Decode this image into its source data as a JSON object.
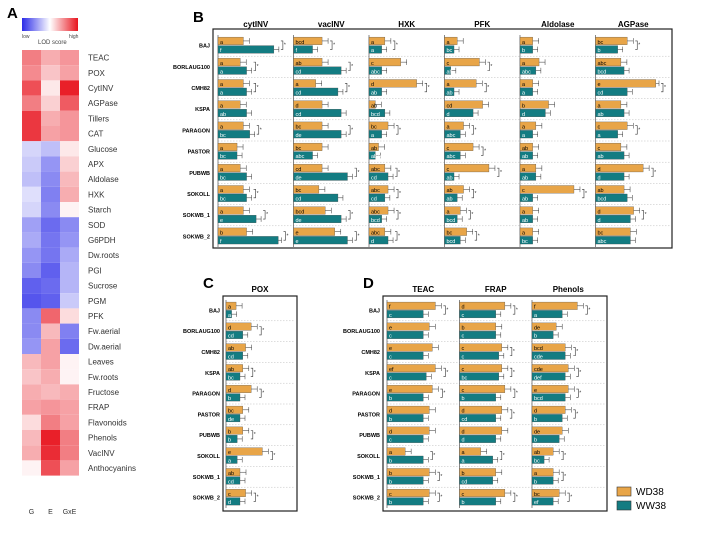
{
  "panel_letters": {
    "A": "A",
    "B": "B",
    "C": "C",
    "D": "D"
  },
  "legend_scale": {
    "low": "low",
    "high": "high",
    "title": "LOD score"
  },
  "legend": {
    "wd": "WD38",
    "ww": "WW38"
  },
  "colors": {
    "wd": "#E8A548",
    "ww": "#137C82",
    "panel_border": "#222222"
  },
  "chart_data": [
    {
      "type": "heatmap",
      "x_labels": [
        "G",
        "E",
        "GxE"
      ],
      "y_labels": [
        "TEAC",
        "POX",
        "CytINV",
        "AGPase",
        "Tillers",
        "CAT",
        "Glucose",
        "APX",
        "Aldolase",
        "HXK",
        "Starch",
        "SOD",
        "G6PDH",
        "Dw.roots",
        "PGI",
        "Sucrose",
        "PGM",
        "PFK",
        "Fw.aerial",
        "Dw.aerial",
        "Leaves",
        "Fw.roots",
        "Fructose",
        "FRAP",
        "Flavonoids",
        "Phenols",
        "VacINV",
        "Anthocyanins"
      ],
      "values": [
        [
          0.55,
          0.35,
          0.45
        ],
        [
          0.5,
          0.25,
          0.4
        ],
        [
          0.75,
          0.1,
          0.95
        ],
        [
          0.55,
          0.2,
          0.7
        ],
        [
          0.85,
          0.35,
          0.45
        ],
        [
          0.85,
          0.4,
          0.45
        ],
        [
          -0.2,
          -0.3,
          0.1
        ],
        [
          -0.25,
          -0.5,
          0.2
        ],
        [
          -0.3,
          -0.55,
          0.3
        ],
        [
          -0.15,
          -0.6,
          0.35
        ],
        [
          -0.2,
          -0.55,
          0.05
        ],
        [
          -0.45,
          -0.7,
          -0.55
        ],
        [
          -0.4,
          -0.65,
          -0.5
        ],
        [
          -0.5,
          -0.65,
          -0.4
        ],
        [
          -0.55,
          -0.75,
          -0.35
        ],
        [
          -0.75,
          -0.7,
          -0.35
        ],
        [
          -0.8,
          -0.75,
          -0.25
        ],
        [
          -0.55,
          0.65,
          0.15
        ],
        [
          -0.55,
          0.3,
          -0.6
        ],
        [
          -0.5,
          0.4,
          -0.7
        ],
        [
          0.3,
          0.4,
          0.05
        ],
        [
          0.25,
          0.35,
          0.05
        ],
        [
          0.35,
          0.3,
          0.35
        ],
        [
          0.4,
          0.45,
          0.4
        ],
        [
          0.15,
          0.55,
          0.4
        ],
        [
          0.3,
          0.95,
          0.55
        ],
        [
          0.35,
          0.9,
          0.55
        ],
        [
          0.05,
          0.75,
          0.4
        ]
      ]
    },
    {
      "type": "bar",
      "panel": "B",
      "categories": [
        "BAJ",
        "BORLAUG100",
        "CMH82",
        "KSPA",
        "PARAGON",
        "PASTOR",
        "PUBWB",
        "SOKOLL",
        "SOKWB_1",
        "SOKWB_2"
      ],
      "panels": [
        {
          "title": "cytINV",
          "xlim": [
            0,
            1
          ],
          "wd": [
            0.4,
            0.35,
            0.4,
            0.35,
            0.4,
            0.3,
            0.35,
            0.4,
            0.4,
            0.45
          ],
          "ww": [
            0.88,
            0.45,
            0.45,
            0.45,
            0.5,
            0.3,
            0.45,
            0.45,
            0.6,
            0.95
          ],
          "wd_letters": [
            "a",
            "a",
            "a",
            "a",
            "a",
            "a",
            "a",
            "a",
            "a",
            "b"
          ],
          "ww_letters": [
            "f",
            "a",
            "a",
            "ab",
            "bc",
            "bc",
            "bc",
            "bc",
            "e",
            "f"
          ],
          "sig": [
            true,
            true,
            true,
            false,
            true,
            false,
            false,
            true,
            true,
            true
          ]
        },
        {
          "title": "vacINV",
          "xlim": [
            0,
            1
          ],
          "wd": [
            0.45,
            0.45,
            0.35,
            0.45,
            0.45,
            0.45,
            0.45,
            0.4,
            0.5,
            0.65
          ],
          "ww": [
            0.3,
            0.75,
            0.7,
            0.75,
            0.75,
            0.3,
            0.85,
            0.7,
            0.75,
            0.85
          ],
          "wd_letters": [
            "bcd",
            "ab",
            "a",
            "d",
            "bc",
            "bc",
            "cd",
            "bc",
            "bcd",
            "e"
          ],
          "ww_letters": [
            "f",
            "cd",
            "cd",
            "cd",
            "de",
            "abc",
            "de",
            "cd",
            "de",
            "e"
          ],
          "sig": [
            true,
            true,
            true,
            false,
            true,
            false,
            true,
            false,
            true,
            true
          ]
        },
        {
          "title": "HXK",
          "xlim": [
            0,
            1
          ],
          "wd": [
            0.25,
            0.5,
            0.75,
            0.1,
            0.3,
            0.15,
            0.25,
            0.3,
            0.3,
            0.25
          ],
          "ww": [
            0.2,
            0.2,
            0.2,
            0.25,
            0.2,
            0.1,
            0.3,
            0.25,
            0.2,
            0.3
          ],
          "wd_letters": [
            "a",
            "c",
            "d",
            "ab",
            "bc",
            "ab",
            "abc",
            "abc",
            "abc",
            "abc"
          ],
          "ww_letters": [
            "a",
            "abc",
            "ab",
            "bcd",
            "a",
            "abcd",
            "cd",
            "cd",
            "bcd",
            "d"
          ],
          "sig": [
            true,
            false,
            true,
            false,
            true,
            false,
            true,
            true,
            true,
            true
          ]
        },
        {
          "title": "PFK",
          "xlim": [
            0,
            1
          ],
          "wd": [
            0.2,
            0.55,
            0.5,
            0.6,
            0.3,
            0.45,
            0.7,
            0.3,
            0.25,
            0.35
          ],
          "ww": [
            0.15,
            0.1,
            0.15,
            0.45,
            0.25,
            0.25,
            0.15,
            0.2,
            0.2,
            0.25
          ],
          "wd_letters": [
            "a",
            "c",
            "a",
            "cd",
            "a",
            "c",
            "c",
            "ab",
            "a",
            "bc"
          ],
          "ww_letters": [
            "bc",
            "ab",
            "ab",
            "d",
            "abc",
            "abc",
            "ab",
            "ab",
            "bcd",
            "bcd"
          ],
          "sig": [
            false,
            true,
            true,
            false,
            true,
            true,
            true,
            true,
            true,
            true
          ]
        },
        {
          "title": "Aldolase",
          "xlim": [
            0,
            1
          ],
          "wd": [
            0.2,
            0.3,
            0.2,
            0.45,
            0.25,
            0.2,
            0.25,
            0.85,
            0.2,
            0.2
          ],
          "ww": [
            0.2,
            0.25,
            0.2,
            0.4,
            0.2,
            0.2,
            0.25,
            0.2,
            0.2,
            0.2
          ],
          "wd_letters": [
            "a",
            "a",
            "a",
            "b",
            "a",
            "ab",
            "a",
            "c",
            "a",
            "a"
          ],
          "ww_letters": [
            "b",
            "abc",
            "a",
            "d",
            "a",
            "ab",
            "ab",
            "ab",
            "ab",
            "bc"
          ],
          "sig": [
            false,
            false,
            false,
            false,
            false,
            false,
            false,
            true,
            false,
            false
          ]
        },
        {
          "title": "AGPase",
          "xlim": [
            0,
            1
          ],
          "wd": [
            0.5,
            0.4,
            0.95,
            0.4,
            0.5,
            0.4,
            0.75,
            0.45,
            0.6,
            0.55
          ],
          "ww": [
            0.35,
            0.45,
            0.5,
            0.45,
            0.35,
            0.45,
            0.45,
            0.5,
            0.55,
            0.55
          ],
          "wd_letters": [
            "bc",
            "abc",
            "e",
            "a",
            "c",
            "c",
            "d",
            "ab",
            "d",
            "bc"
          ],
          "ww_letters": [
            "b",
            "bcd",
            "cd",
            "ab",
            "a",
            "ab",
            "d",
            "bcd",
            "d",
            "abc"
          ],
          "sig": [
            true,
            false,
            true,
            false,
            true,
            false,
            true,
            false,
            true,
            false
          ]
        }
      ]
    },
    {
      "type": "bar",
      "panel": "C",
      "categories": [
        "BAJ",
        "BORLAUG100",
        "CMH82",
        "KSPA",
        "PARAGON",
        "PASTOR",
        "PUBWB",
        "SOKOLL",
        "SOKWB_1",
        "SOKWB_2"
      ],
      "panels": [
        {
          "title": "POX",
          "xlim": [
            0,
            1
          ],
          "wd": [
            0.18,
            0.45,
            0.35,
            0.3,
            0.45,
            0.3,
            0.3,
            0.65,
            0.25,
            0.35
          ],
          "ww": [
            0.1,
            0.3,
            0.3,
            0.25,
            0.25,
            0.25,
            0.2,
            0.2,
            0.25,
            0.25
          ],
          "wd_letters": [
            "a",
            "d",
            "ab",
            "ab",
            "d",
            "bc",
            "b",
            "e",
            "ab",
            "c"
          ],
          "ww_letters": [
            "a",
            "cd",
            "cd",
            "bc",
            "b",
            "de",
            "b",
            "a",
            "cd",
            "d"
          ],
          "sig": [
            false,
            true,
            false,
            true,
            true,
            false,
            true,
            true,
            false,
            true
          ]
        }
      ]
    },
    {
      "type": "bar",
      "panel": "D",
      "categories": [
        "BAJ",
        "BORLAUG100",
        "CMH82",
        "KSPA",
        "PARAGON",
        "PASTOR",
        "PUBWB",
        "SOKOLL",
        "SOKWB_1",
        "SOKWB_2"
      ],
      "panels": [
        {
          "title": "TEAC",
          "xlim": [
            0,
            1
          ],
          "wd": [
            0.8,
            0.7,
            0.75,
            0.8,
            0.75,
            0.7,
            0.7,
            0.3,
            0.7,
            0.7
          ],
          "ww": [
            0.6,
            0.6,
            0.6,
            0.65,
            0.6,
            0.6,
            0.6,
            0.6,
            0.6,
            0.6
          ],
          "wd_letters": [
            "f",
            "e",
            "e",
            "ef",
            "e",
            "d",
            "d",
            "a",
            "b",
            "c"
          ],
          "ww_letters": [
            "c",
            "c",
            "c",
            "c",
            "b",
            "b",
            "c",
            "b",
            "b",
            "b"
          ],
          "sig": [
            true,
            false,
            false,
            true,
            true,
            false,
            false,
            true,
            true,
            true
          ]
        },
        {
          "title": "FRAP",
          "xlim": [
            0,
            1
          ],
          "wd": [
            0.75,
            0.6,
            0.7,
            0.7,
            0.75,
            0.7,
            0.7,
            0.35,
            0.6,
            0.75
          ],
          "ww": [
            0.6,
            0.6,
            0.65,
            0.65,
            0.6,
            0.6,
            0.6,
            0.55,
            0.55,
            0.6
          ],
          "wd_letters": [
            "d",
            "b",
            "c",
            "c",
            "c",
            "d",
            "d",
            "a",
            "b",
            "c"
          ],
          "ww_letters": [
            "c",
            "c",
            "c",
            "bc",
            "b",
            "cd",
            "d",
            "a",
            "cd",
            "b"
          ],
          "sig": [
            true,
            false,
            true,
            true,
            true,
            true,
            false,
            true,
            false,
            true
          ]
        },
        {
          "title": "Phenols",
          "xlim": [
            0,
            1
          ],
          "wd": [
            0.75,
            0.4,
            0.55,
            0.6,
            0.6,
            0.55,
            0.5,
            0.35,
            0.35,
            0.45
          ],
          "ww": [
            0.5,
            0.35,
            0.55,
            0.55,
            0.55,
            0.5,
            0.45,
            0.2,
            0.35,
            0.35
          ],
          "wd_letters": [
            "f",
            "de",
            "bcd",
            "cde",
            "e",
            "d",
            "de",
            "ab",
            "a",
            "bc"
          ],
          "ww_letters": [
            "a",
            "b",
            "cde",
            "def",
            "bcd",
            "b",
            "b",
            "bc",
            "b",
            "ef"
          ],
          "sig": [
            true,
            false,
            true,
            true,
            true,
            true,
            false,
            true,
            true,
            true
          ]
        }
      ]
    }
  ]
}
